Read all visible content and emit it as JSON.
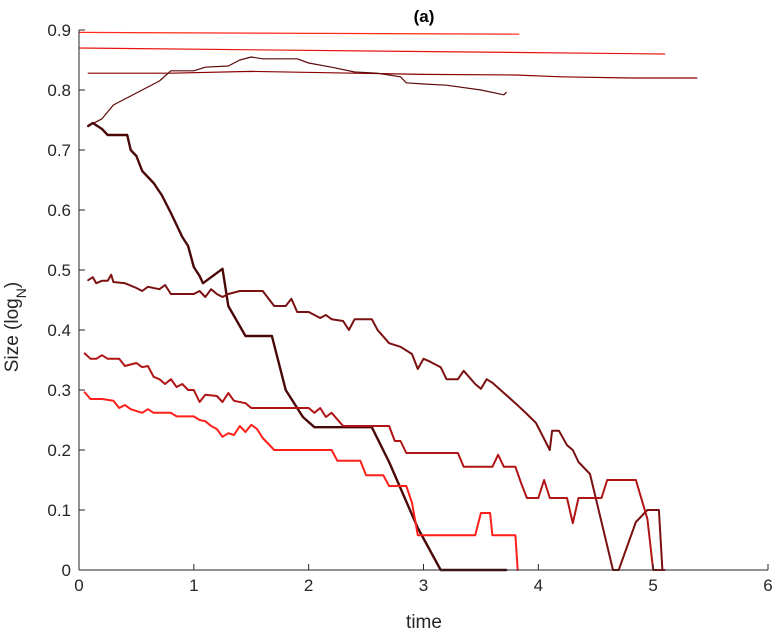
{
  "chart_data": {
    "type": "line",
    "title": "(a)",
    "xlabel": "time",
    "ylabel_main": "Size (log",
    "ylabel_sub": "N",
    "ylabel_close": ")",
    "xlim": [
      0,
      6
    ],
    "ylim": [
      0,
      0.9
    ],
    "xticks": [
      0,
      1,
      2,
      3,
      4,
      5,
      6
    ],
    "yticks": [
      0,
      0.1,
      0.2,
      0.3,
      0.4,
      0.5,
      0.6,
      0.7,
      0.8,
      0.9
    ],
    "xtick_labels": [
      "0",
      "1",
      "2",
      "3",
      "4",
      "5",
      "6"
    ],
    "ytick_labels": [
      "0",
      "0.1",
      "0.2",
      "0.3",
      "0.4",
      "0.5",
      "0.6",
      "0.7",
      "0.8",
      "0.9"
    ],
    "grid": false,
    "series": [
      {
        "color": "#ff2a1a",
        "width": 1.2,
        "points": [
          [
            0,
            0.896
          ],
          [
            3.83,
            0.893
          ]
        ]
      },
      {
        "color": "#e8150f",
        "width": 1.2,
        "points": [
          [
            0,
            0.87
          ],
          [
            5.1,
            0.86
          ]
        ]
      },
      {
        "color": "#8a0000",
        "width": 1.2,
        "points": [
          [
            0.08,
            0.828
          ],
          [
            0.8,
            0.828
          ],
          [
            1.5,
            0.831
          ],
          [
            2.4,
            0.828
          ],
          [
            3.0,
            0.826
          ],
          [
            3.8,
            0.825
          ],
          [
            4.2,
            0.822
          ],
          [
            4.8,
            0.82
          ],
          [
            5.38,
            0.82
          ]
        ]
      },
      {
        "color": "#5c0a08",
        "width": 1.2,
        "points": [
          [
            0.1,
            0.742
          ],
          [
            0.2,
            0.752
          ],
          [
            0.3,
            0.775
          ],
          [
            0.4,
            0.785
          ],
          [
            0.5,
            0.795
          ],
          [
            0.6,
            0.805
          ],
          [
            0.7,
            0.815
          ],
          [
            0.8,
            0.832
          ],
          [
            1.0,
            0.832
          ],
          [
            1.1,
            0.838
          ],
          [
            1.3,
            0.84
          ],
          [
            1.4,
            0.85
          ],
          [
            1.5,
            0.855
          ],
          [
            1.6,
            0.852
          ],
          [
            1.8,
            0.852
          ],
          [
            1.9,
            0.852
          ],
          [
            2.0,
            0.845
          ],
          [
            2.2,
            0.838
          ],
          [
            2.4,
            0.83
          ],
          [
            2.6,
            0.828
          ],
          [
            2.8,
            0.822
          ],
          [
            2.85,
            0.812
          ],
          [
            3.0,
            0.81
          ],
          [
            3.2,
            0.808
          ],
          [
            3.5,
            0.8
          ],
          [
            3.7,
            0.792
          ],
          [
            3.72,
            0.796
          ]
        ]
      },
      {
        "color": "#4a0808",
        "width": 2.4,
        "points": [
          [
            0.08,
            0.74
          ],
          [
            0.12,
            0.745
          ],
          [
            0.2,
            0.735
          ],
          [
            0.25,
            0.725
          ],
          [
            0.35,
            0.725
          ],
          [
            0.42,
            0.725
          ],
          [
            0.45,
            0.7
          ],
          [
            0.5,
            0.69
          ],
          [
            0.55,
            0.665
          ],
          [
            0.65,
            0.645
          ],
          [
            0.72,
            0.625
          ],
          [
            0.8,
            0.595
          ],
          [
            0.9,
            0.555
          ],
          [
            0.95,
            0.54
          ],
          [
            1.0,
            0.505
          ],
          [
            1.05,
            0.49
          ],
          [
            1.08,
            0.478
          ],
          [
            1.25,
            0.502
          ],
          [
            1.3,
            0.44
          ],
          [
            1.45,
            0.39
          ],
          [
            1.55,
            0.39
          ],
          [
            1.68,
            0.39
          ],
          [
            1.8,
            0.3
          ],
          [
            1.95,
            0.255
          ],
          [
            2.05,
            0.238
          ],
          [
            2.45,
            0.238
          ],
          [
            2.55,
            0.238
          ],
          [
            2.7,
            0.18
          ],
          [
            2.95,
            0.07
          ],
          [
            3.15,
            0.0
          ],
          [
            3.72,
            0.0
          ]
        ]
      },
      {
        "color": "#7a1010",
        "width": 2.0,
        "points": [
          [
            0.08,
            0.483
          ],
          [
            0.12,
            0.488
          ],
          [
            0.15,
            0.478
          ],
          [
            0.2,
            0.482
          ],
          [
            0.25,
            0.482
          ],
          [
            0.28,
            0.492
          ],
          [
            0.3,
            0.48
          ],
          [
            0.4,
            0.478
          ],
          [
            0.5,
            0.47
          ],
          [
            0.55,
            0.465
          ],
          [
            0.6,
            0.472
          ],
          [
            0.7,
            0.468
          ],
          [
            0.75,
            0.475
          ],
          [
            0.8,
            0.46
          ],
          [
            0.9,
            0.46
          ],
          [
            1.0,
            0.46
          ],
          [
            1.05,
            0.465
          ],
          [
            1.1,
            0.455
          ],
          [
            1.15,
            0.468
          ],
          [
            1.2,
            0.46
          ],
          [
            1.25,
            0.455
          ],
          [
            1.3,
            0.46
          ],
          [
            1.4,
            0.465
          ],
          [
            1.6,
            0.465
          ],
          [
            1.7,
            0.44
          ],
          [
            1.8,
            0.44
          ],
          [
            1.85,
            0.452
          ],
          [
            1.9,
            0.43
          ],
          [
            2.0,
            0.43
          ],
          [
            2.1,
            0.42
          ],
          [
            2.15,
            0.425
          ],
          [
            2.2,
            0.418
          ],
          [
            2.3,
            0.415
          ],
          [
            2.35,
            0.4
          ],
          [
            2.4,
            0.418
          ],
          [
            2.55,
            0.418
          ],
          [
            2.6,
            0.4
          ],
          [
            2.7,
            0.378
          ],
          [
            2.8,
            0.372
          ],
          [
            2.9,
            0.36
          ],
          [
            2.95,
            0.335
          ],
          [
            3.0,
            0.352
          ],
          [
            3.05,
            0.348
          ],
          [
            3.15,
            0.338
          ],
          [
            3.2,
            0.318
          ],
          [
            3.3,
            0.318
          ],
          [
            3.35,
            0.332
          ],
          [
            3.45,
            0.31
          ],
          [
            3.5,
            0.302
          ],
          [
            3.55,
            0.318
          ],
          [
            3.6,
            0.312
          ],
          [
            3.7,
            0.295
          ],
          [
            3.8,
            0.278
          ],
          [
            3.9,
            0.26
          ],
          [
            3.98,
            0.245
          ],
          [
            4.1,
            0.2
          ],
          [
            4.12,
            0.232
          ],
          [
            4.18,
            0.232
          ],
          [
            4.25,
            0.208
          ],
          [
            4.3,
            0.2
          ],
          [
            4.35,
            0.18
          ],
          [
            4.45,
            0.16
          ],
          [
            4.65,
            0.0
          ],
          [
            4.7,
            0.0
          ],
          [
            4.85,
            0.08
          ],
          [
            4.95,
            0.1
          ],
          [
            5.05,
            0.1
          ],
          [
            5.08,
            0.0
          ]
        ]
      },
      {
        "color": "#b01414",
        "width": 2.0,
        "points": [
          [
            0.05,
            0.361
          ],
          [
            0.1,
            0.352
          ],
          [
            0.15,
            0.352
          ],
          [
            0.2,
            0.358
          ],
          [
            0.25,
            0.352
          ],
          [
            0.35,
            0.352
          ],
          [
            0.4,
            0.34
          ],
          [
            0.5,
            0.345
          ],
          [
            0.55,
            0.338
          ],
          [
            0.6,
            0.34
          ],
          [
            0.65,
            0.322
          ],
          [
            0.7,
            0.318
          ],
          [
            0.75,
            0.31
          ],
          [
            0.8,
            0.318
          ],
          [
            0.85,
            0.305
          ],
          [
            0.9,
            0.31
          ],
          [
            0.95,
            0.3
          ],
          [
            1.0,
            0.3
          ],
          [
            1.05,
            0.28
          ],
          [
            1.1,
            0.292
          ],
          [
            1.2,
            0.29
          ],
          [
            1.25,
            0.28
          ],
          [
            1.3,
            0.295
          ],
          [
            1.35,
            0.282
          ],
          [
            1.45,
            0.278
          ],
          [
            1.5,
            0.27
          ],
          [
            1.75,
            0.27
          ],
          [
            2.0,
            0.27
          ],
          [
            2.05,
            0.262
          ],
          [
            2.1,
            0.27
          ],
          [
            2.15,
            0.255
          ],
          [
            2.2,
            0.262
          ],
          [
            2.3,
            0.24
          ],
          [
            2.6,
            0.24
          ],
          [
            2.7,
            0.24
          ],
          [
            2.75,
            0.215
          ],
          [
            2.8,
            0.215
          ],
          [
            2.85,
            0.195
          ],
          [
            3.2,
            0.195
          ],
          [
            3.3,
            0.195
          ],
          [
            3.35,
            0.172
          ],
          [
            3.6,
            0.172
          ],
          [
            3.65,
            0.192
          ],
          [
            3.7,
            0.172
          ],
          [
            3.8,
            0.172
          ],
          [
            3.85,
            0.145
          ],
          [
            3.9,
            0.12
          ],
          [
            4.0,
            0.12
          ],
          [
            4.05,
            0.15
          ],
          [
            4.1,
            0.12
          ],
          [
            4.25,
            0.12
          ],
          [
            4.3,
            0.078
          ],
          [
            4.35,
            0.12
          ],
          [
            4.55,
            0.12
          ],
          [
            4.6,
            0.15
          ],
          [
            4.85,
            0.15
          ],
          [
            4.95,
            0.085
          ],
          [
            5.0,
            0.0
          ],
          [
            5.1,
            0.0
          ]
        ]
      },
      {
        "color": "#ff1f1a",
        "width": 2.0,
        "points": [
          [
            0.05,
            0.296
          ],
          [
            0.1,
            0.285
          ],
          [
            0.2,
            0.285
          ],
          [
            0.3,
            0.282
          ],
          [
            0.35,
            0.27
          ],
          [
            0.4,
            0.275
          ],
          [
            0.45,
            0.268
          ],
          [
            0.55,
            0.262
          ],
          [
            0.6,
            0.268
          ],
          [
            0.65,
            0.262
          ],
          [
            0.8,
            0.262
          ],
          [
            0.85,
            0.256
          ],
          [
            1.0,
            0.256
          ],
          [
            1.05,
            0.25
          ],
          [
            1.1,
            0.248
          ],
          [
            1.15,
            0.24
          ],
          [
            1.2,
            0.235
          ],
          [
            1.25,
            0.222
          ],
          [
            1.3,
            0.228
          ],
          [
            1.35,
            0.225
          ],
          [
            1.4,
            0.24
          ],
          [
            1.45,
            0.23
          ],
          [
            1.5,
            0.242
          ],
          [
            1.55,
            0.235
          ],
          [
            1.6,
            0.22
          ],
          [
            1.65,
            0.21
          ],
          [
            1.7,
            0.2
          ],
          [
            1.95,
            0.2
          ],
          [
            2.2,
            0.2
          ],
          [
            2.25,
            0.182
          ],
          [
            2.45,
            0.182
          ],
          [
            2.5,
            0.158
          ],
          [
            2.65,
            0.158
          ],
          [
            2.7,
            0.14
          ],
          [
            2.85,
            0.14
          ],
          [
            2.9,
            0.112
          ],
          [
            2.95,
            0.058
          ],
          [
            3.45,
            0.058
          ],
          [
            3.5,
            0.095
          ],
          [
            3.58,
            0.095
          ],
          [
            3.6,
            0.058
          ],
          [
            3.8,
            0.058
          ],
          [
            3.82,
            0.0
          ]
        ]
      }
    ]
  }
}
